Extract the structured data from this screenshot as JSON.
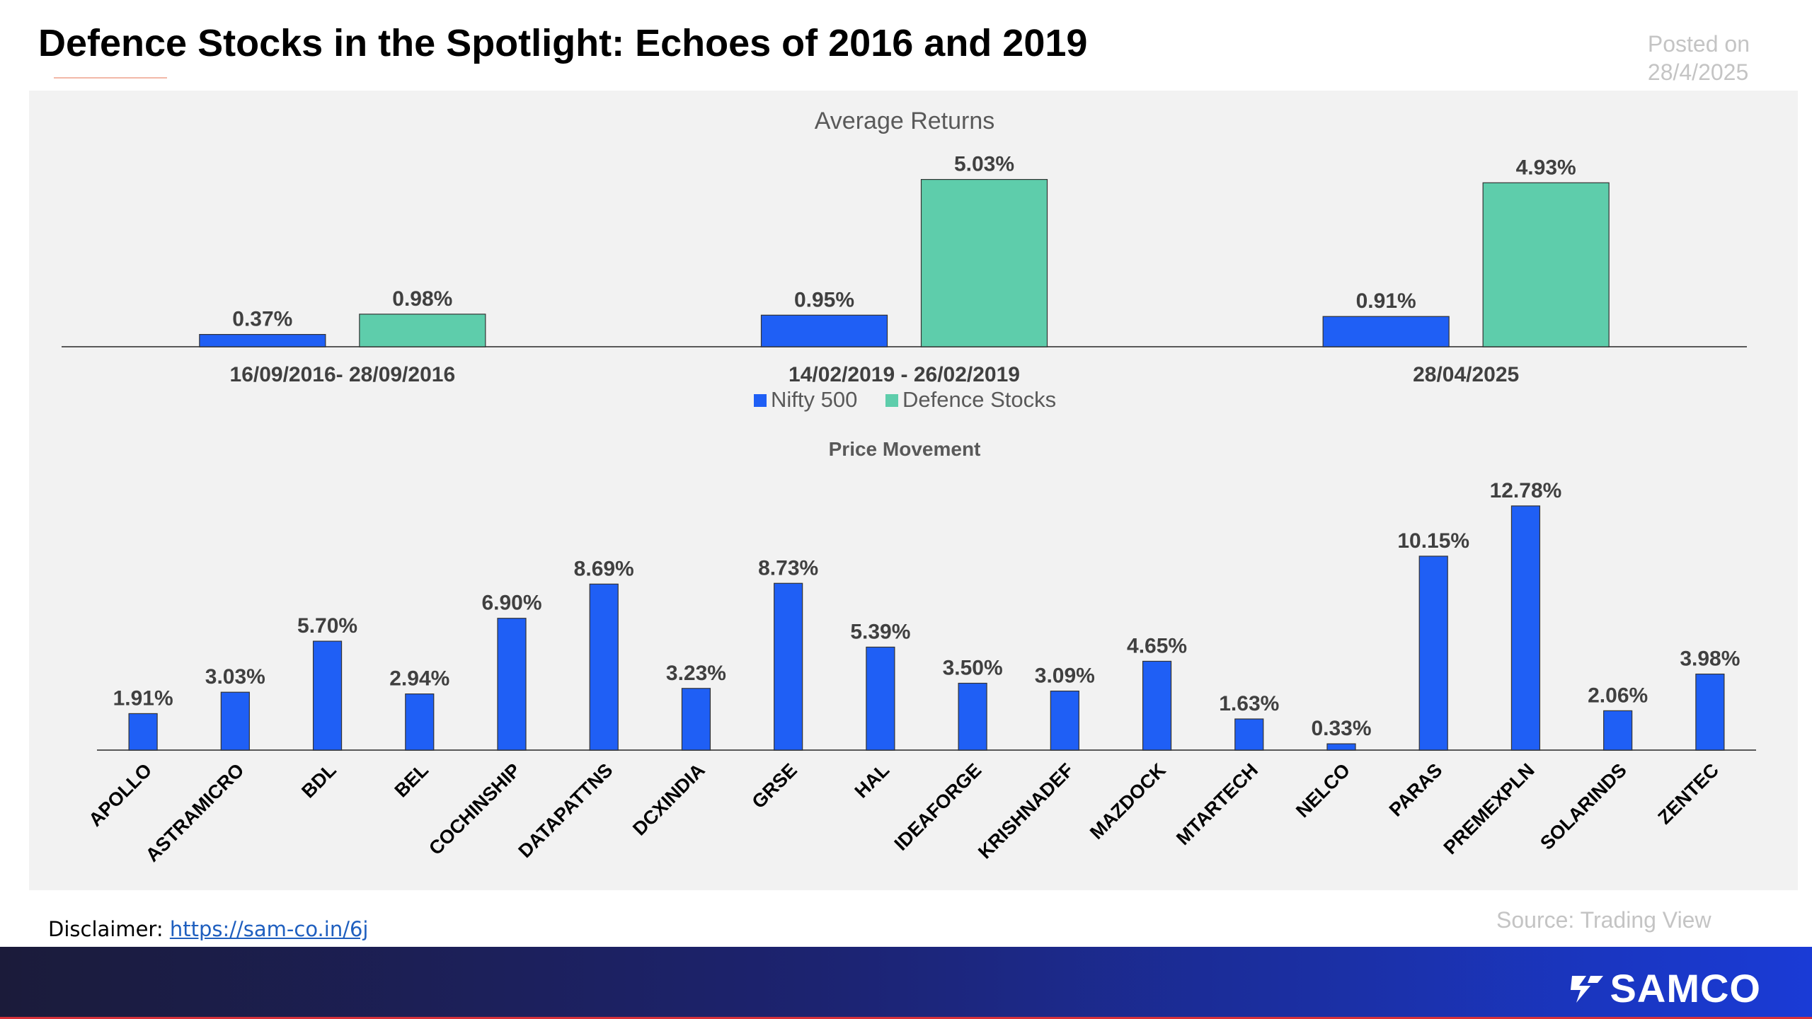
{
  "header": {
    "title": "Defence Stocks in the Spotlight: Echoes of 2016 and 2019",
    "posted_label": "Posted on",
    "posted_date": "28/4/2025"
  },
  "footer": {
    "source": "Source: Trading View",
    "disclaimer_label": "Disclaimer: ",
    "disclaimer_link": "https://sam-co.in/6j",
    "logo_text": "SAMCO"
  },
  "colors": {
    "nifty": "#1f5ff5",
    "defence": "#5ecdab",
    "panel": "#f2f2f2",
    "axis": "#595959",
    "label": "#404040"
  },
  "chart_data": [
    {
      "type": "bar",
      "title": "Average Returns",
      "categories": [
        "16/09/2016- 28/09/2016",
        "14/02/2019 - 26/02/2019",
        "28/04/2025"
      ],
      "series": [
        {
          "name": "Nifty 500",
          "values": [
            0.37,
            0.95,
            0.91
          ],
          "labels": [
            "0.37%",
            "0.95%",
            "0.91%"
          ]
        },
        {
          "name": "Defence Stocks",
          "values": [
            0.98,
            5.03,
            4.93
          ],
          "labels": [
            "0.98%",
            "5.03%",
            "4.93%"
          ]
        }
      ],
      "ylim": [
        0,
        6
      ],
      "legend": "bottom-center",
      "grid": false
    },
    {
      "type": "bar",
      "title": "Price Movement",
      "categories": [
        "APOLLO",
        "ASTRAMICRO",
        "BDL",
        "BEL",
        "COCHINSHIP",
        "DATAPATTNS",
        "DCXINDIA",
        "GRSE",
        "HAL",
        "IDEAFORGE",
        "KRISHNADEF",
        "MAZDOCK",
        "MTARTECH",
        "NELCO",
        "PARAS",
        "PREMEXPLN",
        "SOLARINDS",
        "ZENTEC"
      ],
      "values": [
        1.91,
        3.03,
        5.7,
        2.94,
        6.9,
        8.69,
        3.23,
        8.73,
        5.39,
        3.5,
        3.09,
        4.65,
        1.63,
        0.33,
        10.15,
        12.78,
        2.06,
        3.98
      ],
      "labels": [
        "1.91%",
        "3.03%",
        "5.70%",
        "2.94%",
        "6.90%",
        "8.69%",
        "3.23%",
        "8.73%",
        "5.39%",
        "3.50%",
        "3.09%",
        "4.65%",
        "1.63%",
        "0.33%",
        "10.15%",
        "12.78%",
        "2.06%",
        "3.98%"
      ],
      "ylim": [
        0,
        14
      ],
      "grid": false
    }
  ]
}
